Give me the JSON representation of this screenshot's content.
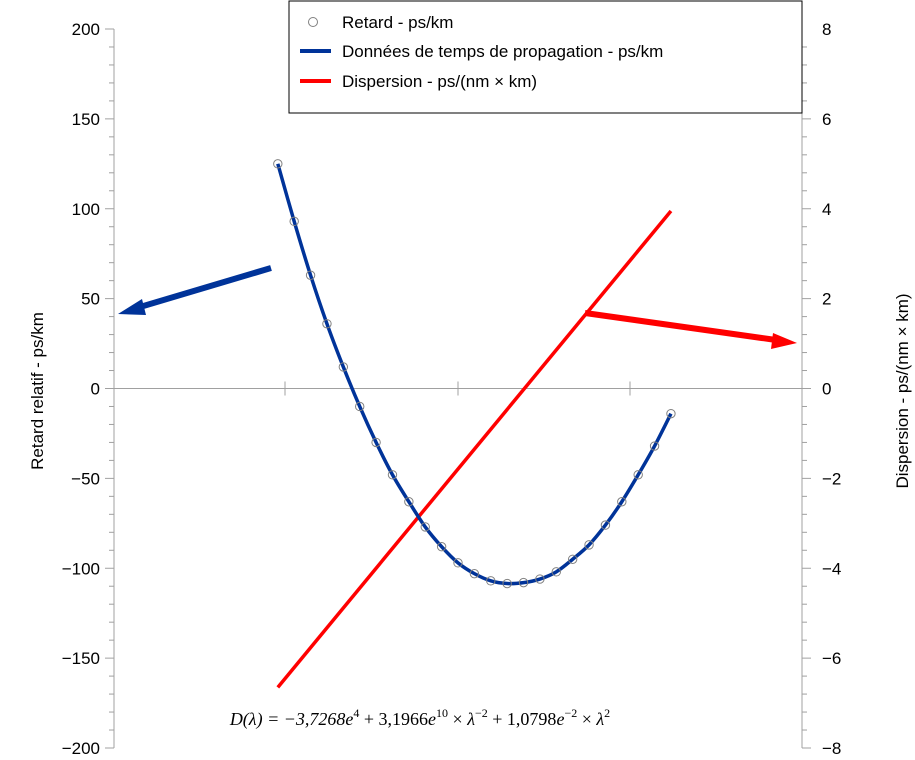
{
  "chart_data": {
    "type": "line",
    "x": [
      1470,
      1475,
      1480,
      1485,
      1490,
      1495,
      1500,
      1505,
      1510,
      1515,
      1520,
      1525,
      1530,
      1535,
      1540,
      1545,
      1550,
      1555,
      1560,
      1565,
      1570,
      1575,
      1580,
      1585,
      1590
    ],
    "xlim": [
      1420,
      1630
    ],
    "left_axis": {
      "label": "Retard relatif - ps/km",
      "ylim": [
        -200,
        200
      ],
      "ticks": [
        "200",
        "150",
        "100",
        "50",
        "0",
        "−50",
        "−100",
        "−150",
        "−200"
      ],
      "tick_values": [
        200,
        150,
        100,
        50,
        0,
        -50,
        -100,
        -150,
        -200
      ]
    },
    "right_axis": {
      "label": "Dispersion - ps/(nm × km)",
      "ylim": [
        -8,
        8
      ],
      "ticks": [
        "8",
        "6",
        "4",
        "2",
        "0",
        "−2",
        "−4",
        "−6",
        "−8"
      ],
      "tick_values": [
        8,
        6,
        4,
        2,
        0,
        -2,
        -4,
        -6,
        -8
      ]
    },
    "series": [
      {
        "name": "Retard - ps/km",
        "kind": "markers",
        "axis": "left",
        "color": "#808080",
        "x": [
          1470,
          1475,
          1480,
          1485,
          1490,
          1495,
          1500,
          1505,
          1510,
          1515,
          1520,
          1525,
          1530,
          1535,
          1540,
          1545,
          1550,
          1555,
          1560,
          1565,
          1570,
          1575,
          1580,
          1585,
          1590
        ],
        "values": [
          125,
          93,
          63,
          36,
          12,
          -10,
          -30,
          -48,
          -63,
          -77,
          -88,
          -97,
          -103,
          -107,
          -108.5,
          -108,
          -106,
          -102,
          -95,
          -87,
          -76,
          -63,
          -48,
          -32,
          -14
        ]
      },
      {
        "name": "Données de temps de propagation - ps/km",
        "kind": "line",
        "axis": "left",
        "color": "#003399",
        "x": [
          1470,
          1475,
          1480,
          1485,
          1490,
          1495,
          1500,
          1505,
          1510,
          1515,
          1520,
          1525,
          1530,
          1535,
          1540,
          1545,
          1550,
          1555,
          1560,
          1565,
          1570,
          1575,
          1580,
          1585,
          1590
        ],
        "values": [
          125,
          93,
          63,
          36,
          12,
          -10,
          -30,
          -48,
          -63,
          -77,
          -88,
          -97,
          -103,
          -107,
          -108.5,
          -108,
          -106,
          -102,
          -95,
          -87,
          -76,
          -63,
          -48,
          -32,
          -14
        ]
      },
      {
        "name": "Dispersion - ps/(nm × km)",
        "kind": "line",
        "axis": "right",
        "color": "#ff0000",
        "x": [
          1470,
          1590
        ],
        "values": [
          -6.65,
          3.95
        ]
      }
    ],
    "annotations": {
      "blue_arrow": {
        "points_to": "left axis",
        "color": "#003399"
      },
      "red_arrow": {
        "points_to": "right axis",
        "color": "#ff0000"
      }
    },
    "formula": {
      "prefix": "D(λ) = −3,7268",
      "e1": "e",
      "p1": "4",
      "part2": " + 3,1966",
      "e2": "e",
      "p2": "10",
      "part3": " × ",
      "lam1": "λ",
      "p3": "−2",
      "part4": " + 1,0798",
      "e3": "e",
      "p4": "−2",
      "part5": " × ",
      "lam2": "λ",
      "p5": "2"
    },
    "legend": {
      "placement": "top-right"
    },
    "grid": false
  }
}
